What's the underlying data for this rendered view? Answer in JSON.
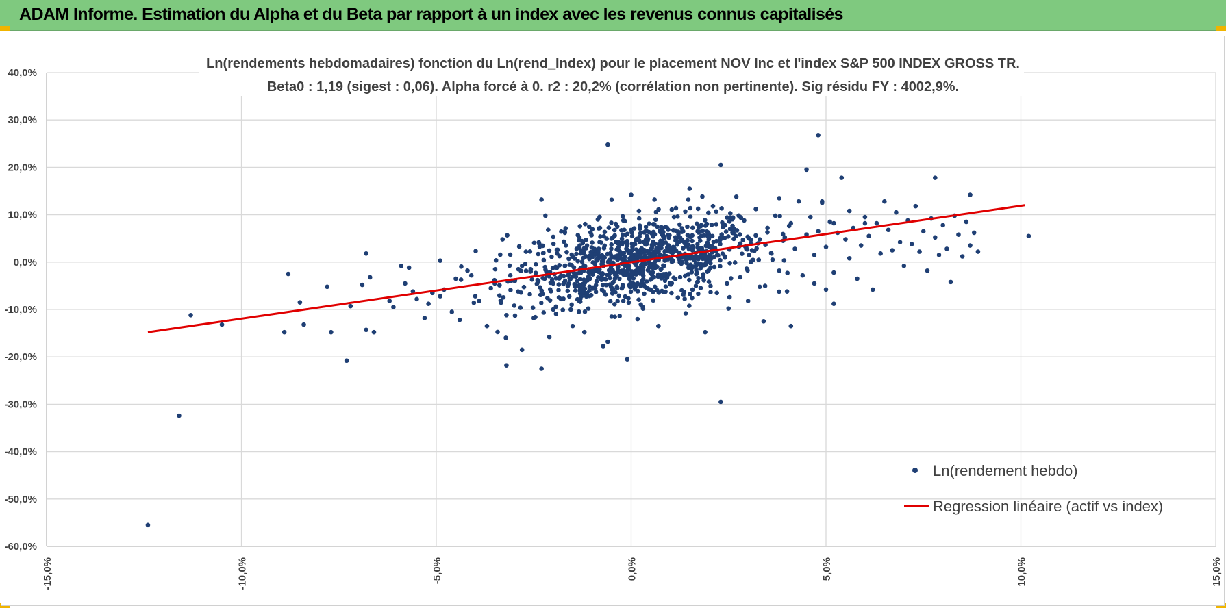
{
  "header": {
    "title": "ADAM Informe. Estimation du Alpha et du Beta par rapport à un index avec les revenus connus capitalisés",
    "background_color": "#7fc97f"
  },
  "chart_data": {
    "type": "scatter",
    "title": "Ln(rendements hebdomadaires) fonction du Ln(rend_Index) pour le placement NOV Inc et l'index S&P 500 INDEX GROSS TR.",
    "subtitle": "Beta0 : 1,19 (sigest : 0,06).  Alpha forcé à 0. r2 : 20,2% (corrélation non pertinente). Sig résidu FY : 4002,9%.",
    "xlabel": "",
    "ylabel": "",
    "xlim": [
      -0.15,
      0.15
    ],
    "ylim": [
      -0.6,
      0.4
    ],
    "x_ticks": [
      -0.15,
      -0.1,
      -0.05,
      0.0,
      0.05,
      0.1,
      0.15
    ],
    "y_ticks": [
      0.4,
      0.3,
      0.2,
      0.1,
      0.0,
      -0.1,
      -0.2,
      -0.3,
      -0.4,
      -0.5,
      -0.6
    ],
    "x_tick_labels": [
      "-15,0%",
      "-10,0%",
      "-5,0%",
      "0,0%",
      "5,0%",
      "10,0%",
      "15,0%"
    ],
    "y_tick_labels": [
      "40,0%",
      "30,0%",
      "20,0%",
      "10,0%",
      "0,0%",
      "-10,0%",
      "-20,0%",
      "-30,0%",
      "-40,0%",
      "-50,0%",
      "-60,0%"
    ],
    "grid": true,
    "legend_position": "bottom-right",
    "series": [
      {
        "name": "Ln(rendement hebdo)",
        "kind": "scatter",
        "color": "#1f3f74",
        "points": [
          [
            -0.124,
            -0.555
          ],
          [
            -0.116,
            -0.324
          ],
          [
            -0.113,
            -0.112
          ],
          [
            -0.105,
            -0.132
          ],
          [
            -0.089,
            -0.148
          ],
          [
            -0.088,
            -0.025
          ],
          [
            -0.085,
            -0.085
          ],
          [
            -0.084,
            -0.132
          ],
          [
            -0.078,
            -0.052
          ],
          [
            -0.077,
            -0.148
          ],
          [
            -0.073,
            -0.208
          ],
          [
            -0.072,
            -0.093
          ],
          [
            -0.069,
            -0.048
          ],
          [
            -0.068,
            0.018
          ],
          [
            -0.068,
            -0.143
          ],
          [
            -0.067,
            -0.032
          ],
          [
            -0.066,
            -0.148
          ],
          [
            -0.062,
            -0.082
          ],
          [
            -0.061,
            -0.095
          ],
          [
            -0.059,
            -0.008
          ],
          [
            -0.058,
            -0.045
          ],
          [
            -0.057,
            -0.012
          ],
          [
            -0.056,
            -0.062
          ],
          [
            -0.055,
            -0.078
          ],
          [
            -0.053,
            -0.118
          ],
          [
            -0.052,
            -0.088
          ],
          [
            -0.051,
            -0.065
          ],
          [
            -0.049,
            -0.072
          ],
          [
            -0.049,
            0.003
          ],
          [
            -0.048,
            -0.058
          ],
          [
            -0.046,
            -0.105
          ],
          [
            -0.045,
            -0.035
          ],
          [
            -0.044,
            -0.122
          ],
          [
            -0.042,
            -0.018
          ],
          [
            -0.041,
            -0.028
          ],
          [
            -0.04,
            -0.072
          ],
          [
            -0.039,
            -0.082
          ],
          [
            -0.037,
            -0.135
          ],
          [
            -0.036,
            -0.055
          ],
          [
            -0.035,
            -0.045
          ],
          [
            -0.033,
            0.048
          ],
          [
            -0.032,
            -0.112
          ],
          [
            -0.031,
            -0.028
          ],
          [
            -0.03,
            -0.092
          ],
          [
            -0.029,
            -0.062
          ],
          [
            -0.028,
            -0.008
          ],
          [
            -0.027,
            0.022
          ],
          [
            -0.026,
            -0.068
          ],
          [
            -0.025,
            -0.118
          ],
          [
            -0.024,
            -0.038
          ],
          [
            -0.032,
            -0.218
          ],
          [
            -0.028,
            -0.185
          ],
          [
            -0.023,
            -0.225
          ],
          [
            -0.023,
            0.132
          ],
          [
            -0.022,
            0.098
          ],
          [
            -0.021,
            -0.158
          ],
          [
            -0.02,
            -0.045
          ],
          [
            -0.019,
            0.018
          ],
          [
            -0.018,
            -0.078
          ],
          [
            -0.017,
            0.062
          ],
          [
            -0.016,
            -0.022
          ],
          [
            -0.015,
            -0.135
          ],
          [
            -0.014,
            0.028
          ],
          [
            -0.013,
            -0.055
          ],
          [
            -0.012,
            -0.148
          ],
          [
            -0.011,
            -0.098
          ],
          [
            -0.01,
            0.041
          ],
          [
            -0.009,
            -0.018
          ],
          [
            -0.008,
            0.072
          ],
          [
            -0.007,
            -0.062
          ],
          [
            -0.006,
            0.248
          ],
          [
            -0.006,
            -0.168
          ],
          [
            -0.005,
            -0.115
          ],
          [
            -0.004,
            0.012
          ],
          [
            -0.003,
            -0.035
          ],
          [
            -0.002,
            0.088
          ],
          [
            -0.002,
            -0.082
          ],
          [
            -0.001,
            0.025
          ],
          [
            -0.001,
            -0.205
          ],
          [
            0.0,
            0.142
          ],
          [
            0.0,
            -0.048
          ],
          [
            0.001,
            0.038
          ],
          [
            0.002,
            -0.012
          ],
          [
            0.002,
            0.108
          ],
          [
            0.003,
            -0.095
          ],
          [
            0.004,
            0.055
          ],
          [
            0.005,
            -0.058
          ],
          [
            0.005,
            0.018
          ],
          [
            0.006,
            0.132
          ],
          [
            0.007,
            -0.135
          ],
          [
            0.008,
            0.068
          ],
          [
            0.009,
            -0.025
          ],
          [
            0.01,
            0.022
          ],
          [
            0.011,
            0.095
          ],
          [
            0.012,
            -0.075
          ],
          [
            0.013,
            0.045
          ],
          [
            0.014,
            -0.108
          ],
          [
            0.015,
            0.155
          ],
          [
            0.016,
            0.008
          ],
          [
            0.017,
            -0.042
          ],
          [
            0.018,
            0.078
          ],
          [
            0.019,
            -0.148
          ],
          [
            0.02,
            0.035
          ],
          [
            0.021,
            0.118
          ],
          [
            0.022,
            -0.065
          ],
          [
            0.023,
            0.205
          ],
          [
            0.024,
            0.012
          ],
          [
            0.025,
            -0.098
          ],
          [
            0.026,
            0.062
          ],
          [
            0.027,
            0.138
          ],
          [
            0.028,
            -0.032
          ],
          [
            0.029,
            0.088
          ],
          [
            0.03,
            -0.082
          ],
          [
            0.031,
            0.025
          ],
          [
            0.032,
            0.112
          ],
          [
            0.033,
            -0.052
          ],
          [
            0.033,
            0.048
          ],
          [
            0.034,
            -0.125
          ],
          [
            0.035,
            0.072
          ],
          [
            0.036,
            0.018
          ],
          [
            0.037,
            0.098
          ],
          [
            0.038,
            -0.018
          ],
          [
            0.038,
            0.135
          ],
          [
            0.039,
            0.045
          ],
          [
            0.04,
            -0.062
          ],
          [
            0.041,
            0.082
          ],
          [
            0.042,
            0.028
          ],
          [
            0.043,
            0.128
          ],
          [
            0.044,
            -0.028
          ],
          [
            0.045,
            0.058
          ],
          [
            0.046,
            0.095
          ],
          [
            0.047,
            0.015
          ],
          [
            0.047,
            -0.045
          ],
          [
            0.048,
            0.065
          ],
          [
            0.049,
            0.125
          ],
          [
            0.05,
            0.032
          ],
          [
            0.051,
            0.085
          ],
          [
            0.052,
            -0.022
          ],
          [
            0.053,
            0.062
          ],
          [
            0.054,
            0.178
          ],
          [
            0.055,
            0.048
          ],
          [
            0.056,
            0.008
          ],
          [
            0.056,
            0.108
          ],
          [
            0.057,
            0.072
          ],
          [
            0.058,
            -0.035
          ],
          [
            0.059,
            0.035
          ],
          [
            0.06,
            0.095
          ],
          [
            0.061,
            0.055
          ],
          [
            0.062,
            -0.058
          ],
          [
            0.063,
            0.082
          ],
          [
            0.064,
            0.018
          ],
          [
            0.065,
            0.128
          ],
          [
            0.066,
            0.068
          ],
          [
            0.067,
            0.025
          ],
          [
            0.068,
            0.105
          ],
          [
            0.069,
            0.042
          ],
          [
            0.07,
            -0.008
          ],
          [
            0.071,
            0.088
          ],
          [
            0.072,
            0.038
          ],
          [
            0.073,
            0.118
          ],
          [
            0.074,
            0.022
          ],
          [
            0.075,
            0.065
          ],
          [
            0.076,
            -0.018
          ],
          [
            0.077,
            0.092
          ],
          [
            0.078,
            0.052
          ],
          [
            0.079,
            0.015
          ],
          [
            0.08,
            0.078
          ],
          [
            0.081,
            0.028
          ],
          [
            0.082,
            -0.042
          ],
          [
            0.083,
            0.098
          ],
          [
            0.084,
            0.058
          ],
          [
            0.085,
            0.012
          ],
          [
            0.086,
            0.085
          ],
          [
            0.087,
            0.035
          ],
          [
            0.088,
            0.062
          ],
          [
            0.041,
            -0.135
          ],
          [
            0.045,
            0.195
          ],
          [
            0.048,
            0.268
          ],
          [
            0.049,
            0.128
          ],
          [
            0.05,
            -0.058
          ],
          [
            0.052,
            -0.088
          ],
          [
            0.023,
            -0.295
          ],
          [
            0.052,
            0.082
          ],
          [
            0.06,
            0.082
          ],
          [
            0.078,
            0.178
          ],
          [
            0.087,
            0.142
          ],
          [
            0.089,
            0.022
          ],
          [
            0.102,
            0.055
          ]
        ]
      },
      {
        "name": "Regression linéaire (actif vs index)",
        "kind": "line",
        "color": "#e00000",
        "x": [
          -0.124,
          0.101
        ],
        "y": [
          -0.148,
          0.12
        ]
      }
    ]
  }
}
